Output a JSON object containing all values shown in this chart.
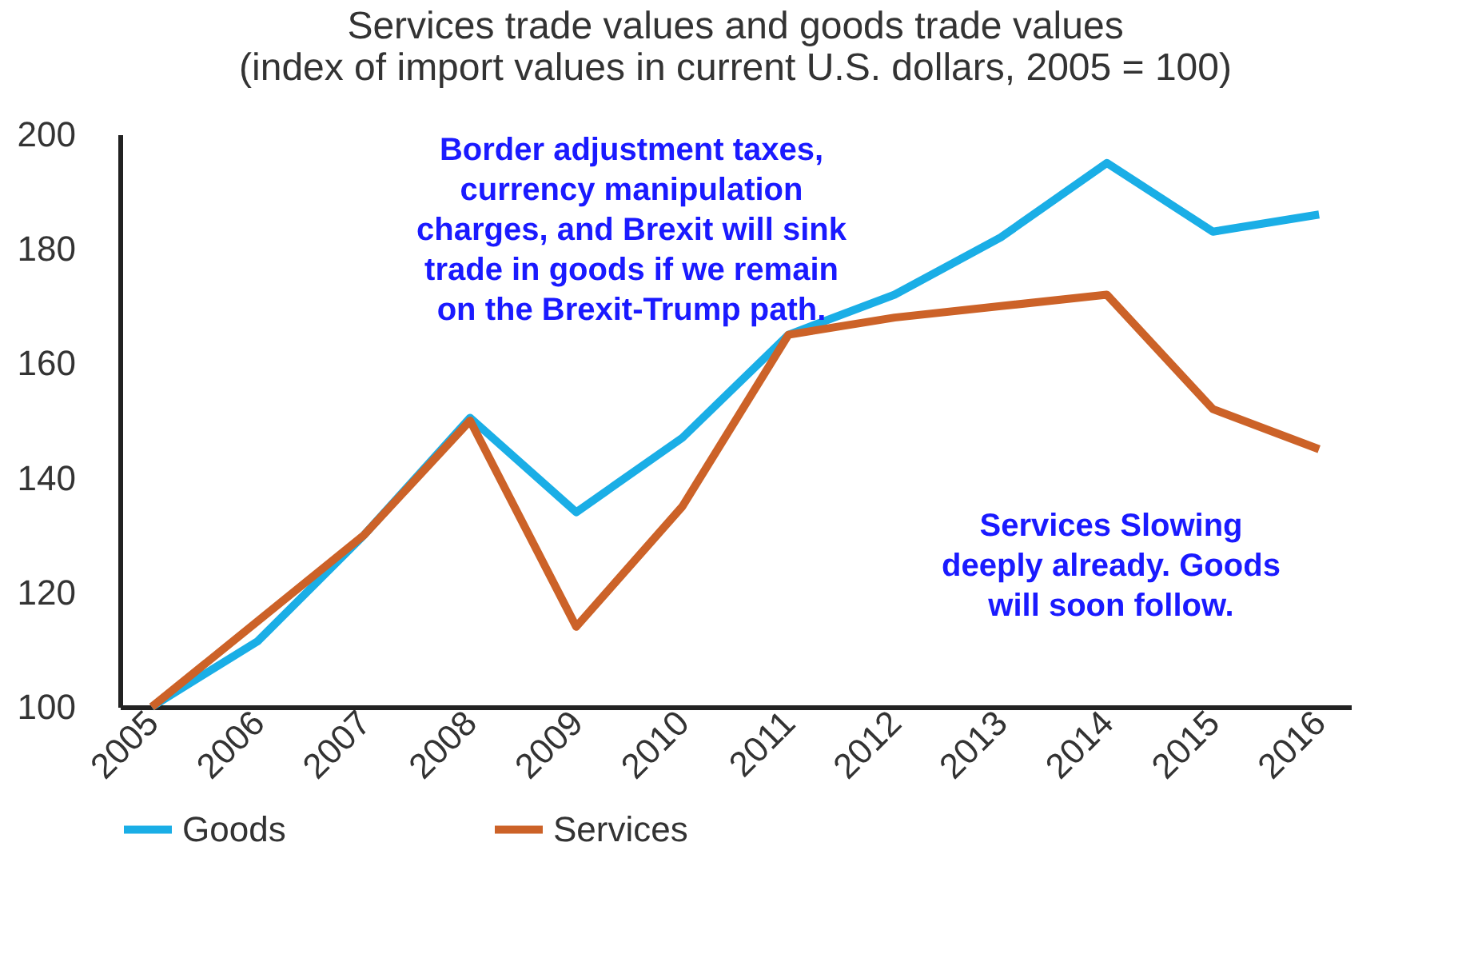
{
  "chart_data": {
    "type": "line",
    "title": "Services trade values and goods trade values",
    "subtitle": "(index of import values in current U.S. dollars, 2005 = 100)",
    "categories": [
      "2005",
      "2006",
      "2007",
      "2008",
      "2009",
      "2010",
      "2011",
      "2012",
      "2013",
      "2014",
      "2015",
      "2016"
    ],
    "series": [
      {
        "name": "Goods",
        "color": "#1aaee6",
        "values": [
          100,
          111.5,
          130,
          150.5,
          134,
          147,
          165,
          172,
          182,
          195,
          183,
          186
        ]
      },
      {
        "name": "Services",
        "color": "#cc6228",
        "values": [
          100,
          115,
          130,
          150,
          114,
          135,
          165,
          168,
          170,
          172,
          152,
          145
        ]
      }
    ],
    "ylim": [
      100,
      200
    ],
    "yticks": [
      100,
      120,
      140,
      160,
      180,
      200
    ],
    "grid": false,
    "legend": "bottom",
    "marker": "none",
    "line_style": "solid",
    "annotations": [
      "Border adjustment taxes,\ncurrency manipulation\ncharges, and Brexit will sink\ntrade in goods if we remain\non the Brexit-Trump path.",
      "Services Slowing\ndeeply already. Goods\nwill soon follow."
    ]
  }
}
